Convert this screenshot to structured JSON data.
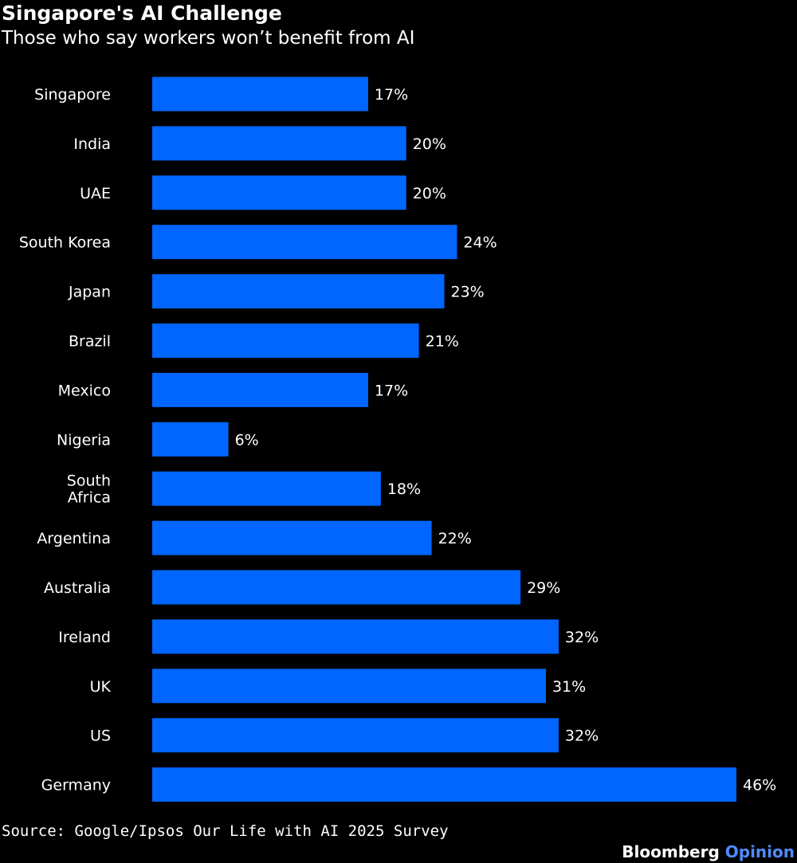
{
  "chart_data": {
    "type": "bar",
    "orientation": "horizontal",
    "title": "Singapore's AI Challenge",
    "subtitle": "Those who say workers won’t benefit from AI",
    "categories": [
      "Singapore",
      "India",
      "UAE",
      "South Korea",
      "Japan",
      "Brazil",
      "Mexico",
      "Nigeria",
      "South Africa",
      "Argentina",
      "Australia",
      "Ireland",
      "UK",
      "US",
      "Germany"
    ],
    "category_label_lines": [
      [
        "Singapore"
      ],
      [
        "India"
      ],
      [
        "UAE"
      ],
      [
        "South Korea"
      ],
      [
        "Japan"
      ],
      [
        "Brazil"
      ],
      [
        "Mexico"
      ],
      [
        "Nigeria"
      ],
      [
        "South",
        "Africa"
      ],
      [
        "Argentina"
      ],
      [
        "Australia"
      ],
      [
        "Ireland"
      ],
      [
        "UK"
      ],
      [
        "US"
      ],
      [
        "Germany"
      ]
    ],
    "values": [
      17,
      20,
      20,
      24,
      23,
      21,
      17,
      6,
      18,
      22,
      29,
      32,
      31,
      32,
      46
    ],
    "value_labels": [
      "17%",
      "20%",
      "20%",
      "24%",
      "23%",
      "21%",
      "17%",
      "6%",
      "18%",
      "22%",
      "29%",
      "32%",
      "31%",
      "32%",
      "46%"
    ],
    "xlabel": "",
    "ylabel": "",
    "xlim": [
      0,
      46
    ],
    "grid": false,
    "legend": "none",
    "bar_color": "#0066ff",
    "source": "Source: Google/Ipsos Our Life with AI 2025 Survey"
  },
  "branding": {
    "name": "Bloomberg",
    "section": "Opinion",
    "section_color": "#4f8bff"
  },
  "colors": {
    "background": "#000000",
    "text": "#ffffff"
  }
}
